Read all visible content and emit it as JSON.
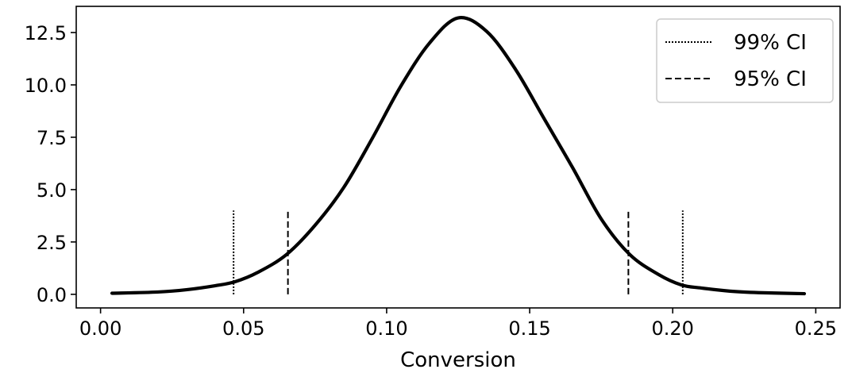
{
  "chart_data": {
    "type": "line",
    "title": "",
    "xlabel": "Conversion",
    "ylabel": "",
    "xlim": [
      -0.0085,
      0.2585
    ],
    "ylim": [
      -0.65,
      13.75
    ],
    "x_ticks": [
      0.0,
      0.05,
      0.1,
      0.15,
      0.2,
      0.25
    ],
    "x_tick_labels": [
      "0.00",
      "0.05",
      "0.10",
      "0.15",
      "0.20",
      "0.25"
    ],
    "y_ticks": [
      0.0,
      2.5,
      5.0,
      7.5,
      10.0,
      12.5
    ],
    "y_tick_labels": [
      "0.0",
      "2.5",
      "5.0",
      "7.5",
      "10.0",
      "12.5"
    ],
    "grid": false,
    "legend_position": "top-right",
    "series": [
      {
        "kind": "curve",
        "style": "solid",
        "color": "#000000",
        "x": [
          0.004,
          0.02,
          0.03,
          0.04,
          0.047,
          0.055,
          0.065,
          0.075,
          0.085,
          0.095,
          0.105,
          0.115,
          0.125,
          0.135,
          0.145,
          0.155,
          0.165,
          0.175,
          0.185,
          0.195,
          0.203,
          0.21,
          0.22,
          0.23,
          0.246
        ],
        "y": [
          0.05,
          0.11,
          0.22,
          0.41,
          0.6,
          1.05,
          1.9,
          3.3,
          5.1,
          7.45,
          9.95,
          12.0,
          13.2,
          12.55,
          10.75,
          8.4,
          6.05,
          3.6,
          1.9,
          0.95,
          0.45,
          0.3,
          0.15,
          0.08,
          0.03
        ]
      },
      {
        "name": "99% CI",
        "style": "dotted",
        "color": "#000000",
        "vlines": [
          0.0465,
          0.2035
        ],
        "ymin": 0.0,
        "ymax": 4.0
      },
      {
        "name": "95% CI",
        "style": "dashed",
        "color": "#000000",
        "vlines": [
          0.0655,
          0.1845
        ],
        "ymin": 0.0,
        "ymax": 4.0
      }
    ]
  }
}
